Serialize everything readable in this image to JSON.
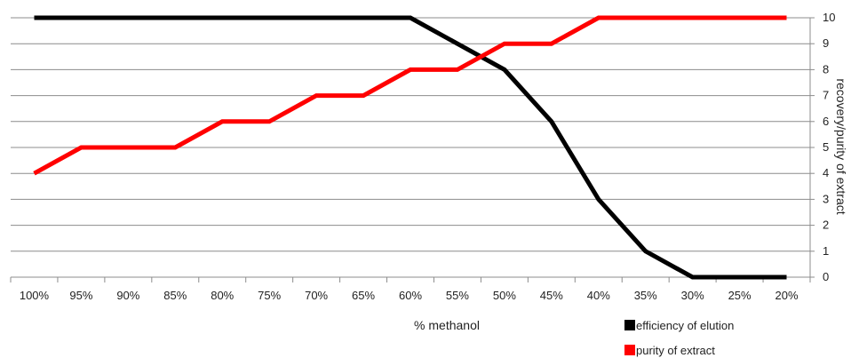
{
  "chart_data": {
    "type": "line",
    "categories": [
      "100%",
      "95%",
      "90%",
      "85%",
      "80%",
      "75%",
      "70%",
      "65%",
      "60%",
      "55%",
      "50%",
      "45%",
      "40%",
      "35%",
      "30%",
      "25%",
      "20%"
    ],
    "series": [
      {
        "name": "efficiency of elution",
        "color": "#000000",
        "values": [
          10,
          10,
          10,
          10,
          10,
          10,
          10,
          10,
          10,
          9,
          8,
          6,
          3,
          1,
          0,
          0,
          0
        ]
      },
      {
        "name": "purity of extract",
        "color": "#ff0000",
        "values": [
          4,
          5,
          5,
          5,
          6,
          6,
          7,
          7,
          8,
          8,
          9,
          9,
          10,
          10,
          10,
          10,
          10
        ]
      }
    ],
    "xlabel": "% methanol",
    "ylabel": "recovery/purity of extract",
    "ylim": [
      0,
      10
    ],
    "yticks": [
      0,
      1,
      2,
      3,
      4,
      5,
      6,
      7,
      8,
      9,
      10
    ],
    "y_axis_side": "right",
    "grid": "horizontal",
    "legend_position": "bottom-right"
  }
}
